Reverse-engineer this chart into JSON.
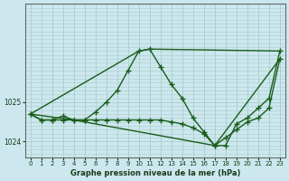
{
  "title": "Graphe pression niveau de la mer (hPa)",
  "bg_color": "#cce8ee",
  "grid_color": "#aacccc",
  "line_color": "#1a5c1a",
  "xlim": [
    -0.5,
    23.5
  ],
  "ylim": [
    1023.6,
    1027.5
  ],
  "yticks": [
    1024,
    1025
  ],
  "xticks": [
    0,
    1,
    2,
    3,
    4,
    5,
    6,
    7,
    8,
    9,
    10,
    11,
    12,
    13,
    14,
    15,
    16,
    17,
    18,
    19,
    20,
    21,
    22,
    23
  ],
  "series": [
    {
      "x": [
        0,
        1,
        2,
        3,
        4,
        5,
        6,
        7,
        8,
        9,
        10,
        11,
        12,
        13,
        14,
        15,
        16,
        17,
        18,
        19,
        20,
        21,
        22,
        23
      ],
      "y": [
        1024.7,
        1024.55,
        1024.55,
        1024.65,
        1024.55,
        1024.55,
        1024.75,
        1025.0,
        1025.3,
        1025.8,
        1026.3,
        1026.35,
        1025.9,
        1025.45,
        1025.1,
        1024.6,
        1024.25,
        1023.9,
        1023.9,
        1024.45,
        1024.6,
        1024.85,
        1025.1,
        1026.3
      ],
      "marker": true,
      "lw": 1.0
    },
    {
      "x": [
        0,
        1,
        2,
        3,
        4,
        5,
        6,
        7,
        8,
        9,
        10,
        11,
        12,
        13,
        14,
        15,
        16,
        17,
        18,
        19,
        20,
        21,
        22,
        23
      ],
      "y": [
        1024.7,
        1024.55,
        1024.55,
        1024.55,
        1024.55,
        1024.55,
        1024.55,
        1024.55,
        1024.55,
        1024.55,
        1024.55,
        1024.55,
        1024.55,
        1024.5,
        1024.45,
        1024.35,
        1024.2,
        1023.9,
        1024.1,
        1024.3,
        1024.5,
        1024.6,
        1024.85,
        1026.1
      ],
      "marker": true,
      "lw": 1.0
    },
    {
      "x": [
        0,
        10,
        11,
        23
      ],
      "y": [
        1024.7,
        1026.3,
        1026.35,
        1026.3
      ],
      "marker": false,
      "lw": 1.0
    },
    {
      "x": [
        0,
        4,
        17,
        23
      ],
      "y": [
        1024.7,
        1024.55,
        1023.9,
        1026.1
      ],
      "marker": false,
      "lw": 1.0
    }
  ]
}
